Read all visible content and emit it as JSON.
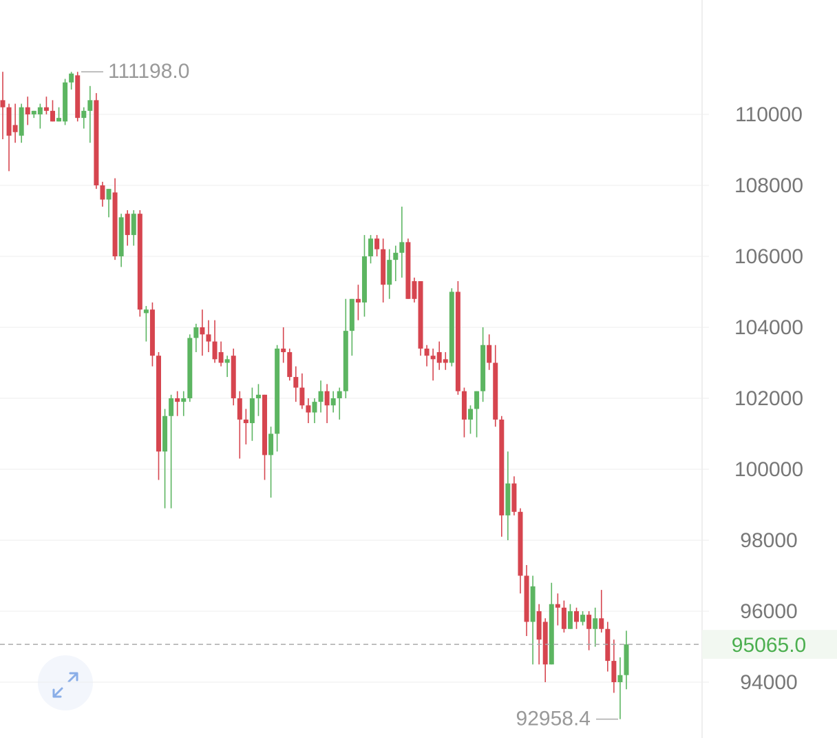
{
  "chart_data": {
    "type": "candlestick",
    "up_color": "#5cb561",
    "down_color": "#d6454f",
    "ylim": [
      92427,
      113223
    ],
    "yticks": [
      94000,
      96000,
      98000,
      100000,
      102000,
      104000,
      106000,
      108000,
      110000
    ],
    "grid": true,
    "open": [
      110400,
      110200,
      109700,
      109400,
      110200,
      110000,
      110000,
      110200,
      110100,
      109800,
      109800,
      110900,
      111100,
      109900,
      110100,
      110400,
      108000,
      107600,
      107800,
      106000,
      107200,
      106600,
      107200,
      104400,
      104500,
      103200,
      100500,
      101500,
      102000,
      101900,
      102000,
      103700,
      104000,
      103800,
      103600,
      103300,
      103000,
      103200,
      102000,
      101400,
      101300,
      102000,
      102100,
      100400,
      101000,
      103400,
      103300,
      102600,
      102300,
      101800,
      101600,
      101900,
      102200,
      101800,
      102000,
      102200,
      103900,
      104800,
      104700,
      106000,
      106500,
      106200,
      105200,
      105900,
      106100,
      106400,
      105300,
      105300,
      103400,
      103200,
      103300,
      103100,
      103000,
      105000,
      102200,
      101400,
      101700,
      102200,
      103500,
      103000,
      101400,
      98700,
      99600,
      98800,
      97000,
      95700,
      96000,
      95700,
      94500,
      96200,
      96100,
      95500,
      96000,
      95700,
      95900,
      95500,
      95800,
      95500,
      94600,
      94000,
      94200
    ],
    "high": [
      111200,
      110300,
      110300,
      110300,
      110500,
      110100,
      110300,
      110500,
      110400,
      110200,
      111000,
      111198,
      111198,
      110200,
      110800,
      110600,
      108100,
      107900,
      108200,
      107200,
      107300,
      107300,
      107300,
      104600,
      104700,
      103300,
      101700,
      102100,
      102200,
      102200,
      103800,
      104100,
      104500,
      104200,
      104200,
      103600,
      103200,
      103400,
      102200,
      101700,
      102300,
      102400,
      102100,
      101200,
      103500,
      104000,
      103400,
      102900,
      102700,
      102000,
      102000,
      102500,
      102400,
      102200,
      102300,
      104800,
      104800,
      105200,
      106600,
      106600,
      106600,
      106500,
      106200,
      106300,
      107400,
      106500,
      105400,
      105300,
      103500,
      103400,
      103600,
      103300,
      105100,
      105300,
      102300,
      101800,
      102200,
      104000,
      103800,
      103500,
      101500,
      100500,
      99800,
      98900,
      97300,
      97000,
      96200,
      95800,
      96800,
      96500,
      96300,
      96200,
      96100,
      96000,
      96000,
      96100,
      96600,
      95700,
      95200,
      94700,
      95450
    ],
    "low": [
      109300,
      108400,
      109200,
      109200,
      109700,
      109900,
      109600,
      110000,
      109800,
      109800,
      109700,
      110700,
      109800,
      109600,
      109200,
      107900,
      107400,
      107100,
      105900,
      105700,
      106300,
      106300,
      104300,
      103600,
      102900,
      99700,
      98900,
      98900,
      101500,
      101500,
      101900,
      103300,
      103200,
      103300,
      103000,
      102900,
      102600,
      101800,
      100300,
      100700,
      100800,
      101500,
      99700,
      99200,
      100500,
      103000,
      102500,
      101900,
      101700,
      101300,
      101300,
      101600,
      101300,
      101600,
      101400,
      102000,
      103200,
      104200,
      104300,
      105800,
      106000,
      104700,
      104800,
      105300,
      105400,
      104800,
      104700,
      103200,
      102900,
      102500,
      102800,
      102800,
      102900,
      102100,
      100900,
      101000,
      100900,
      101900,
      102800,
      101200,
      98100,
      98000,
      98700,
      96500,
      95300,
      94500,
      94500,
      94000,
      94500,
      95600,
      95400,
      95500,
      95500,
      95600,
      94900,
      95000,
      95400,
      94300,
      93700,
      92958.4,
      93800
    ],
    "close": [
      110200,
      109400,
      109500,
      110200,
      110000,
      110100,
      110200,
      110100,
      109800,
      109900,
      110900,
      111150,
      109900,
      110100,
      110400,
      108000,
      107600,
      107900,
      106000,
      107100,
      106600,
      107200,
      104500,
      104500,
      103200,
      100500,
      101500,
      102000,
      101900,
      102000,
      103700,
      104000,
      103800,
      103600,
      103100,
      103000,
      103100,
      102000,
      101400,
      101300,
      102000,
      102100,
      100400,
      101000,
      103400,
      103300,
      102600,
      102300,
      101800,
      101600,
      101900,
      102200,
      101800,
      102000,
      102200,
      103900,
      104800,
      104700,
      106000,
      106500,
      106200,
      105200,
      105900,
      106100,
      106400,
      104800,
      104800,
      103400,
      103200,
      103100,
      103000,
      103000,
      105000,
      102200,
      101400,
      101700,
      102200,
      103500,
      103000,
      101400,
      98700,
      99600,
      98800,
      97000,
      95700,
      96700,
      95200,
      94500,
      96200,
      96100,
      95500,
      96000,
      95700,
      95900,
      95500,
      95800,
      95500,
      94600,
      94000,
      94200,
      95065
    ],
    "annotations": [
      {
        "value": 111198.0,
        "label": "111198.0"
      },
      {
        "value": 92958.4,
        "label": "92958.4"
      }
    ],
    "last_price": {
      "value": 95065.0,
      "label": "95065.0",
      "color": "#4caf50"
    }
  }
}
